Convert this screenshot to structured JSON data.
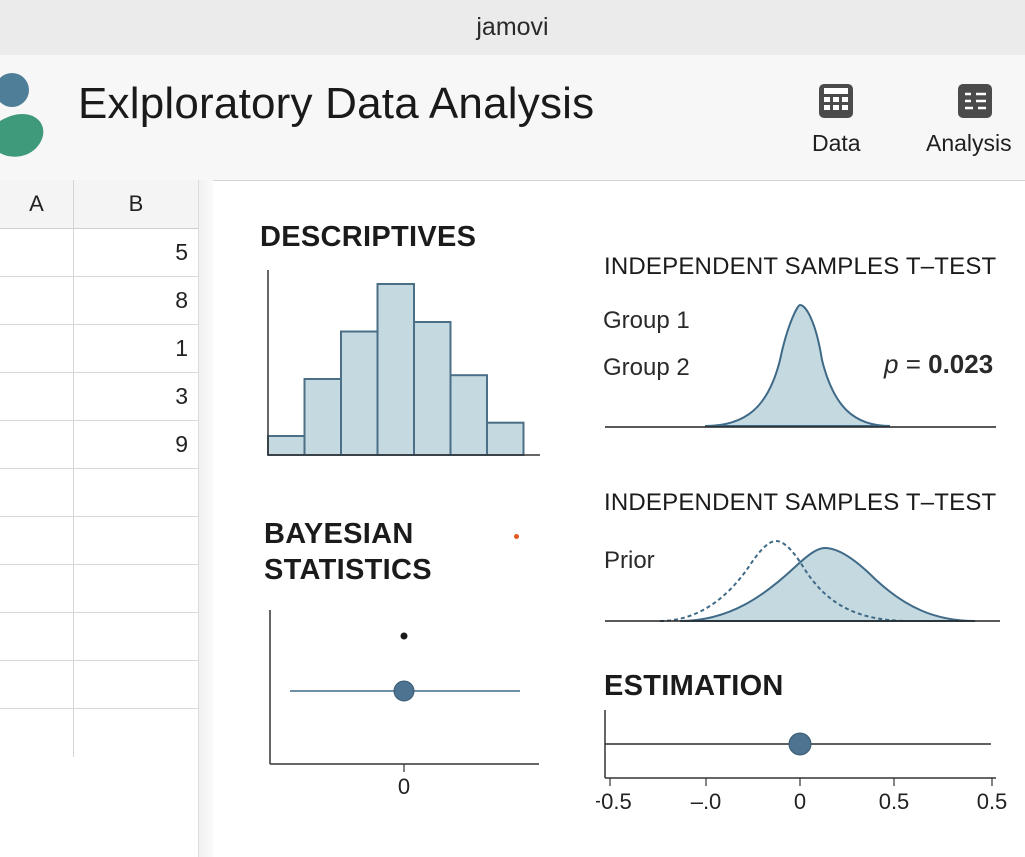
{
  "window": {
    "title": "jamovi"
  },
  "header": {
    "title": "Exlploratory Data Analysis",
    "toolbar": [
      {
        "label": "Data",
        "icon": "spreadsheet-grid-icon"
      },
      {
        "label": "Analysis",
        "icon": "analysis-list-icon"
      }
    ]
  },
  "spreadsheet": {
    "columns": [
      "A",
      "B"
    ],
    "column_b_values": [
      "5",
      "8",
      "1",
      "3",
      "9"
    ]
  },
  "results": {
    "descriptives": {
      "title": "DESCRIPTIVES",
      "chart_data": {
        "type": "bar",
        "description": "histogram",
        "values": [
          1,
          4,
          6.5,
          9,
          7,
          4.2,
          1.7
        ],
        "bar_color": "#c5d9e0",
        "edge_color": "#4a6f86"
      }
    },
    "ttest1": {
      "title": "INDEPENDENT SAMPLES T–TEST",
      "group1": "Group 1",
      "group2": "Group 2",
      "p_label": "p",
      "p_eq": "=",
      "p_value": "0.023"
    },
    "bayesian": {
      "title_line1": "BAYESIAN",
      "title_line2": "STATISTICS",
      "tick_label": "0"
    },
    "ttest2": {
      "title": "INDEPENDENT SAMPLES T–TEST",
      "prior_label": "Prior"
    },
    "estimation": {
      "title": "ESTIMATION",
      "tick_labels": [
        "−0.5",
        "–.0",
        "0",
        "0.5",
        "0.5"
      ],
      "estimate": 0
    }
  },
  "colors": {
    "accent_blue": "#3f6a87",
    "curve_fill": "#c5d9e0",
    "point_fill": "#4d7390",
    "logo_blue": "#4f7e98",
    "logo_green": "#3f9a7c",
    "orange_dot": "#e2581f"
  }
}
